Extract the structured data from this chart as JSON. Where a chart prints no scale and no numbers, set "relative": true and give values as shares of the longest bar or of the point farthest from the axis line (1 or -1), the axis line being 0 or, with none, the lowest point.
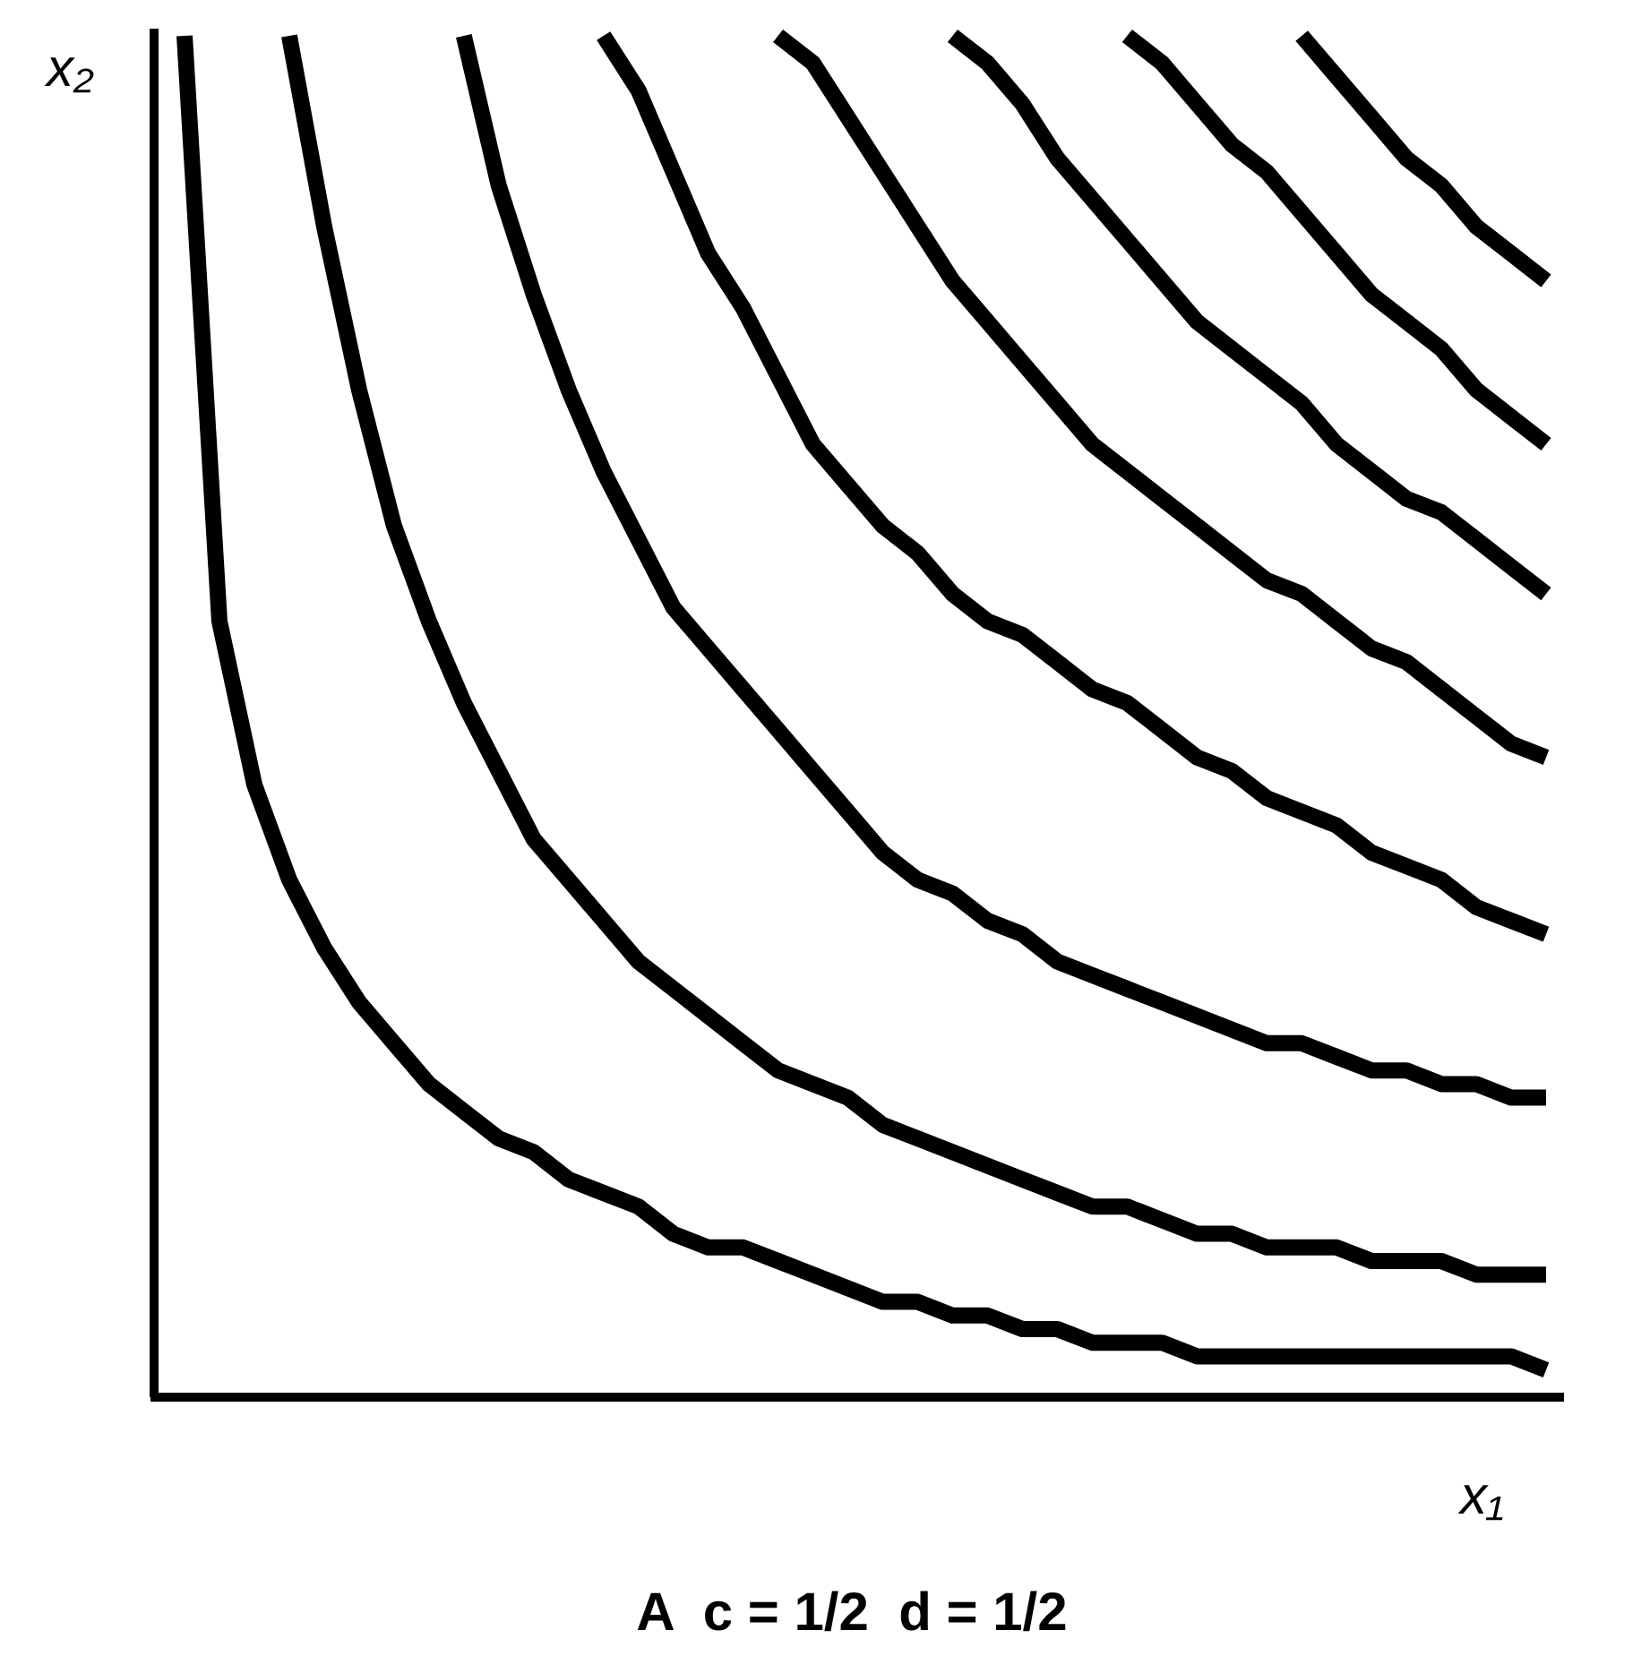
{
  "chart_data": {
    "type": "line",
    "relative": true,
    "title": "A  c = 1/2  d = 1/2",
    "xlabel": "x₁",
    "ylabel": "x₂",
    "categories": [
      null,
      null,
      null,
      null,
      null,
      null,
      null,
      null,
      null,
      null,
      null,
      null,
      null,
      null,
      null,
      null,
      null,
      null,
      null,
      null,
      null,
      null,
      null,
      null,
      null,
      null,
      null,
      null,
      null,
      null,
      null,
      null,
      null,
      null,
      null,
      null,
      null,
      null,
      null,
      null
    ],
    "series": [
      {
        "color": "#000000",
        "values": [
          1.0,
          0.57,
          0.45,
          0.38,
          0.33,
          0.29,
          0.26,
          0.23,
          0.21,
          0.19,
          0.18,
          0.16,
          0.15,
          0.14,
          0.12,
          0.11,
          0.11,
          0.1,
          0.09,
          0.08,
          0.07,
          0.07,
          0.06,
          0.06,
          0.05,
          0.05,
          0.04,
          0.04,
          0.04,
          0.03,
          0.03,
          0.03,
          0.03,
          0.03,
          0.03,
          0.03,
          0.03,
          0.03,
          0.03,
          0.02
        ]
      },
      {
        "color": "#000000",
        "values": [
          null,
          null,
          null,
          1.0,
          0.86,
          0.74,
          0.64,
          0.57,
          0.51,
          0.46,
          0.41,
          0.38,
          0.35,
          0.32,
          0.3,
          0.28,
          0.26,
          0.24,
          0.23,
          0.22,
          0.2,
          0.19,
          0.18,
          0.17,
          0.16,
          0.15,
          0.14,
          0.14,
          0.13,
          0.12,
          0.12,
          0.11,
          0.11,
          0.11,
          0.1,
          0.1,
          0.1,
          0.09,
          0.09,
          0.09
        ]
      },
      {
        "color": "#000000",
        "values": [
          null,
          null,
          null,
          null,
          null,
          null,
          null,
          null,
          1.0,
          0.89,
          0.81,
          0.74,
          0.68,
          0.63,
          0.58,
          0.55,
          0.52,
          0.49,
          0.46,
          0.43,
          0.4,
          0.38,
          0.37,
          0.35,
          0.34,
          0.32,
          0.31,
          0.3,
          0.29,
          0.28,
          0.27,
          0.26,
          0.26,
          0.25,
          0.24,
          0.24,
          0.23,
          0.23,
          0.22,
          0.22
        ]
      },
      {
        "color": "#000000",
        "values": [
          null,
          null,
          null,
          null,
          null,
          null,
          null,
          null,
          null,
          null,
          null,
          null,
          1.0,
          0.96,
          0.9,
          0.84,
          0.8,
          0.75,
          0.7,
          0.67,
          0.64,
          0.62,
          0.59,
          0.57,
          0.56,
          0.54,
          0.52,
          0.51,
          0.49,
          0.47,
          0.46,
          0.44,
          0.43,
          0.42,
          0.4,
          0.39,
          0.38,
          0.36,
          0.35,
          0.34
        ]
      },
      {
        "color": "#000000",
        "values": [
          null,
          null,
          null,
          null,
          null,
          null,
          null,
          null,
          null,
          null,
          null,
          null,
          null,
          null,
          null,
          null,
          null,
          1.0,
          0.98,
          0.94,
          0.9,
          0.86,
          0.82,
          0.79,
          0.76,
          0.73,
          0.7,
          0.68,
          0.66,
          0.64,
          0.62,
          0.6,
          0.59,
          0.57,
          0.55,
          0.54,
          0.52,
          0.5,
          0.48,
          0.47
        ]
      },
      {
        "color": "#000000",
        "values": [
          null,
          null,
          null,
          null,
          null,
          null,
          null,
          null,
          null,
          null,
          null,
          null,
          null,
          null,
          null,
          null,
          null,
          null,
          null,
          null,
          null,
          null,
          1.0,
          0.98,
          0.95,
          0.91,
          0.88,
          0.85,
          0.82,
          0.79,
          0.77,
          0.75,
          0.73,
          0.7,
          0.68,
          0.66,
          0.65,
          0.63,
          0.61,
          0.59
        ]
      },
      {
        "color": "#000000",
        "values": [
          null,
          null,
          null,
          null,
          null,
          null,
          null,
          null,
          null,
          null,
          null,
          null,
          null,
          null,
          null,
          null,
          null,
          null,
          null,
          null,
          null,
          null,
          null,
          null,
          null,
          null,
          null,
          1.0,
          0.98,
          0.95,
          0.92,
          0.9,
          0.87,
          0.84,
          0.81,
          0.79,
          0.77,
          0.74,
          0.72,
          0.7
        ]
      },
      {
        "color": "#000000",
        "values": [
          null,
          null,
          null,
          null,
          null,
          null,
          null,
          null,
          null,
          null,
          null,
          null,
          null,
          null,
          null,
          null,
          null,
          null,
          null,
          null,
          null,
          null,
          null,
          null,
          null,
          null,
          null,
          null,
          null,
          null,
          null,
          null,
          1.0,
          0.97,
          0.94,
          0.91,
          0.89,
          0.86,
          0.84,
          0.82
        ]
      }
    ]
  }
}
